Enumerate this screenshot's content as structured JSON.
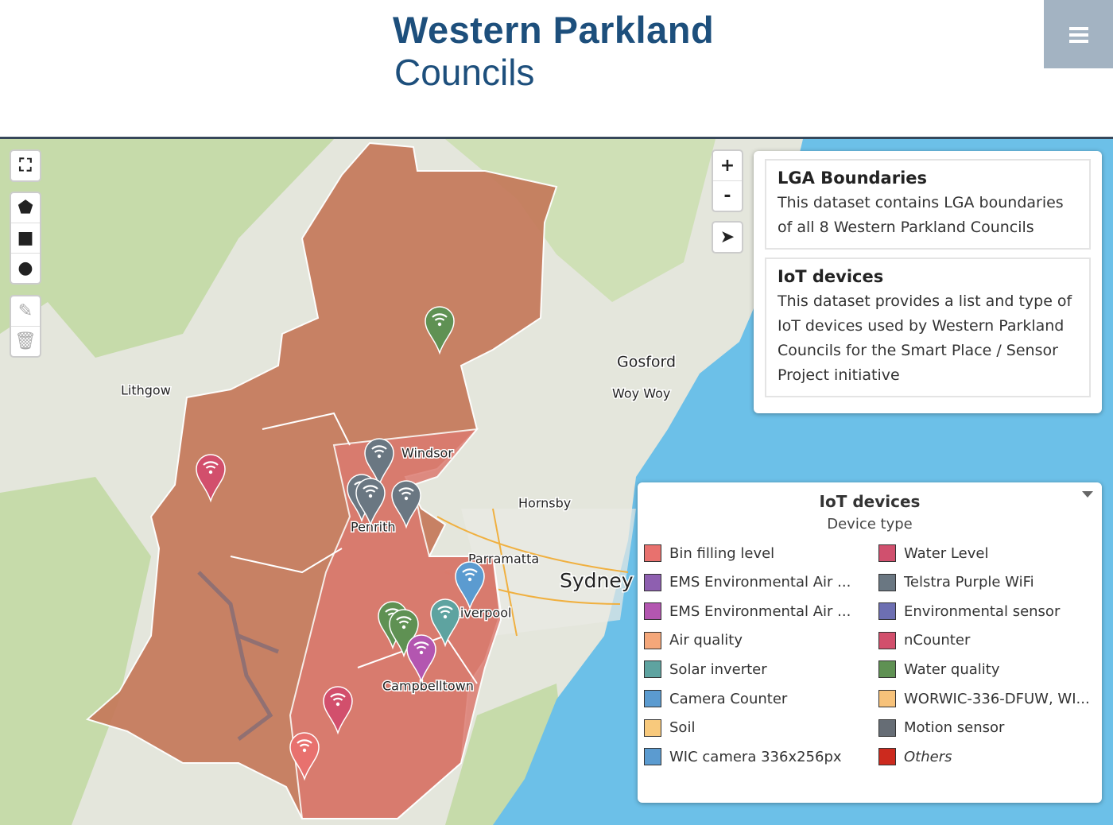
{
  "header": {
    "title_line1": "Western Parkland",
    "title_line2": "Councils"
  },
  "map": {
    "controls": {
      "zoom_in": "+",
      "zoom_out": "-"
    },
    "places": [
      "Lithgow",
      "Gosford",
      "Woy Woy",
      "Windsor",
      "Hornsby",
      "Penrith",
      "Parramatta",
      "Sydney",
      "Liverpool",
      "Campbelltown"
    ]
  },
  "info_panel": {
    "datasets": [
      {
        "title": "LGA Boundaries",
        "description": "This dataset contains LGA boundaries of all 8 Western Parkland Councils"
      },
      {
        "title": "IoT devices",
        "description": "This dataset provides a list and type of IoT devices used by Western Parkland Councils for the Smart Place / Sensor Project initiative"
      }
    ]
  },
  "legend": {
    "title": "IoT devices",
    "subtitle": "Device type",
    "items": [
      {
        "label": "Bin filling level",
        "color": "#e8716e"
      },
      {
        "label": "Water Level",
        "color": "#d0506e"
      },
      {
        "label": "EMS Environmental Air ...",
        "color": "#8e5fb0"
      },
      {
        "label": "Telstra Purple WiFi",
        "color": "#6a7782"
      },
      {
        "label": "EMS Environmental Air ...",
        "color": "#b356b0"
      },
      {
        "label": "Environmental sensor",
        "color": "#6d6fb2"
      },
      {
        "label": "Air quality",
        "color": "#f4a77a"
      },
      {
        "label": "nCounter",
        "color": "#d24f6c"
      },
      {
        "label": "Solar inverter",
        "color": "#5ea3a0"
      },
      {
        "label": "Water quality",
        "color": "#5f9153"
      },
      {
        "label": "Camera Counter",
        "color": "#5b9bd0"
      },
      {
        "label": "WORWIC-336-DFUW, WI...",
        "color": "#f7c27a"
      },
      {
        "label": "Soil",
        "color": "#f8c97c"
      },
      {
        "label": "Motion sensor",
        "color": "#666d75"
      },
      {
        "label": "WIC camera 336x256px",
        "color": "#5b9bd0"
      },
      {
        "label": "Others",
        "color": "#cc2a1e"
      }
    ]
  }
}
